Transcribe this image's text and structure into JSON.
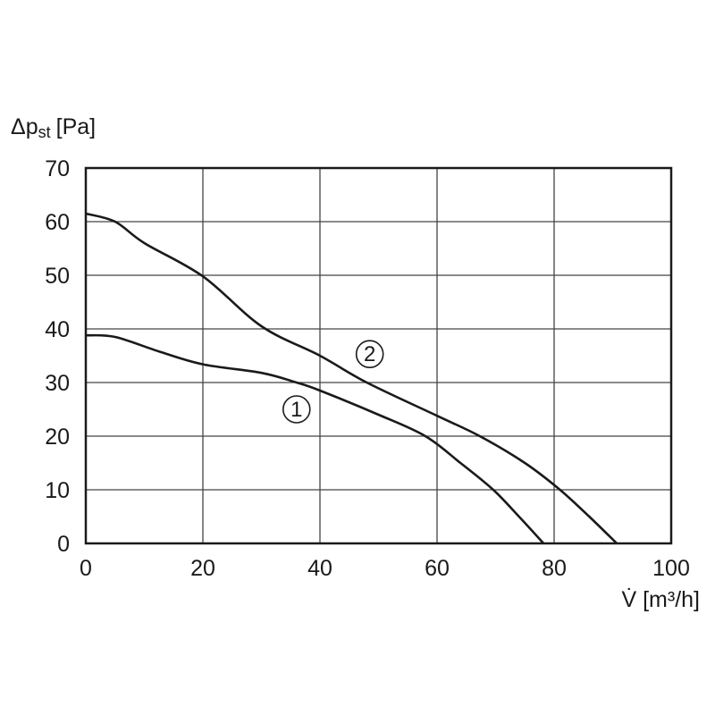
{
  "chart_data": {
    "type": "line",
    "title": "",
    "xlabel": "V̇ [m³/h]",
    "ylabel_main": "Δp",
    "ylabel_sub": "st",
    "ylabel_unit": "[Pa]",
    "xlim": [
      0,
      100
    ],
    "ylim": [
      0,
      70
    ],
    "xticks": [
      "0",
      "20",
      "40",
      "60",
      "80",
      "100"
    ],
    "yticks": [
      "0",
      "10",
      "20",
      "30",
      "40",
      "50",
      "60",
      "70"
    ],
    "grid": true,
    "line_color": "#1a1a1a",
    "series": [
      {
        "name": "①",
        "label_at": [
          36,
          25
        ],
        "points": [
          [
            0,
            38.8
          ],
          [
            5,
            38.5
          ],
          [
            12.5,
            35.8
          ],
          [
            20,
            33.4
          ],
          [
            30,
            31.8
          ],
          [
            36,
            30
          ],
          [
            40,
            28.5
          ],
          [
            50,
            24
          ],
          [
            58,
            20
          ],
          [
            64,
            15
          ],
          [
            69.6,
            10
          ],
          [
            74,
            5
          ],
          [
            78.2,
            0
          ]
        ]
      },
      {
        "name": "②",
        "label_at": [
          48.5,
          35.3
        ],
        "points": [
          [
            0,
            61.5
          ],
          [
            5,
            60
          ],
          [
            10,
            56
          ],
          [
            20,
            49.8
          ],
          [
            30,
            40.5
          ],
          [
            40,
            35
          ],
          [
            48,
            30
          ],
          [
            60,
            23.8
          ],
          [
            67.3,
            20
          ],
          [
            75,
            15
          ],
          [
            81,
            10
          ],
          [
            86,
            5
          ],
          [
            90.7,
            0
          ]
        ]
      }
    ]
  }
}
